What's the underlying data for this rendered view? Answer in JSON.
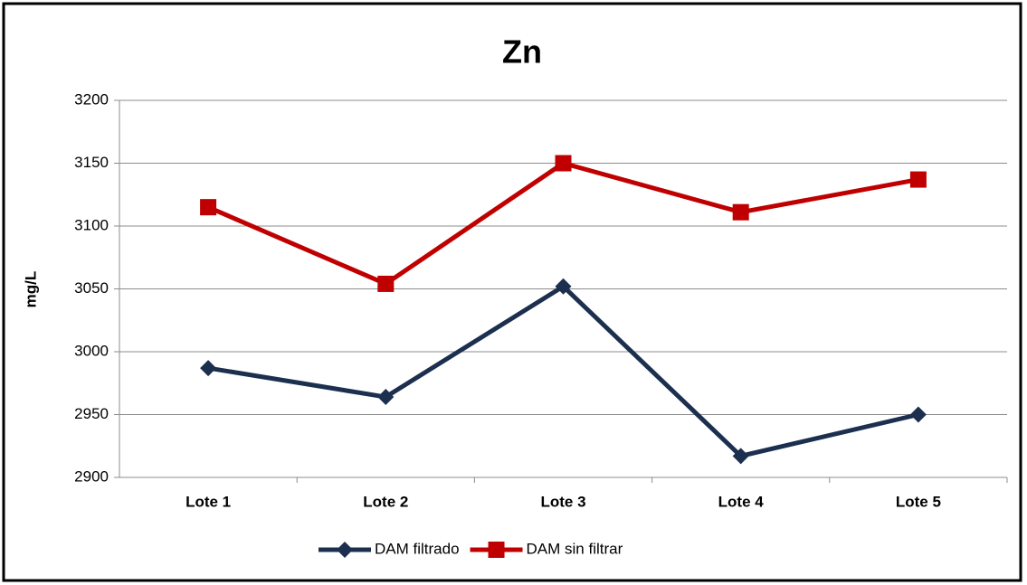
{
  "chart_data": {
    "type": "line",
    "title": "Zn",
    "y_label": "mg/L",
    "categories": [
      "Lote 1",
      "Lote 2",
      "Lote 3",
      "Lote 4",
      "Lote 5"
    ],
    "series": [
      {
        "name": "DAM filtrado",
        "color": "#1c2f4f",
        "marker": "diamond",
        "values": [
          2987,
          2964,
          3052,
          2917,
          2950
        ]
      },
      {
        "name": "DAM sin filtrar",
        "color": "#c00000",
        "marker": "square",
        "values": [
          3115,
          3054,
          3150,
          3111,
          3137
        ]
      }
    ],
    "ylim": [
      2900,
      3200
    ],
    "yticks": [
      2900,
      2950,
      3000,
      3050,
      3100,
      3150,
      3200
    ],
    "grid": true,
    "legend": "bottom"
  }
}
